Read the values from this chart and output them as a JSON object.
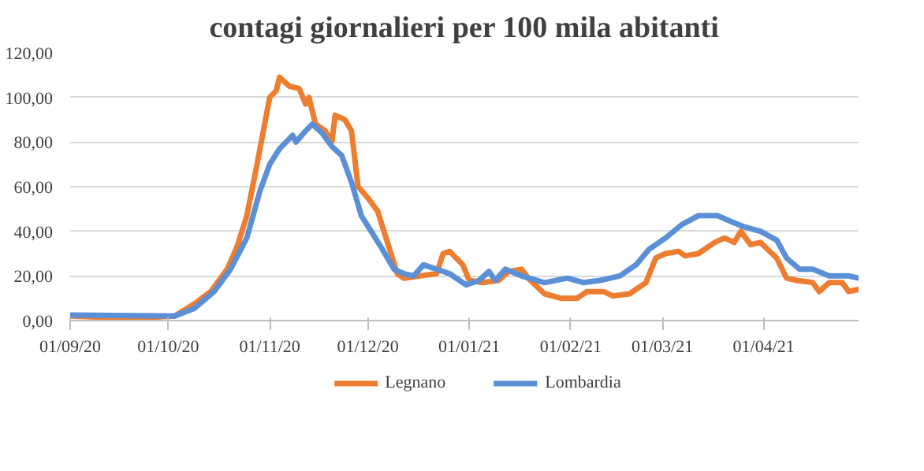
{
  "chart_data": {
    "type": "line",
    "title": "contagi giornalieri per 100 mila abitanti",
    "xlim": [
      "2020-09-01",
      "2021-04-30"
    ],
    "xticks": [
      {
        "value": "2020-09-01",
        "label": "01/09/20"
      },
      {
        "value": "2020-10-01",
        "label": "01/10/20"
      },
      {
        "value": "2020-11-01",
        "label": "01/11/20"
      },
      {
        "value": "2020-12-01",
        "label": "01/12/20"
      },
      {
        "value": "2021-01-01",
        "label": "01/01/21"
      },
      {
        "value": "2021-02-01",
        "label": "01/02/21"
      },
      {
        "value": "2021-03-01",
        "label": "01/03/21"
      },
      {
        "value": "2021-04-01",
        "label": "01/04/21"
      }
    ],
    "ylim": [
      0,
      120
    ],
    "yticks": [
      {
        "value": 0,
        "label": "0,00"
      },
      {
        "value": 20,
        "label": "20,00"
      },
      {
        "value": 40,
        "label": "40,00"
      },
      {
        "value": 60,
        "label": "60,00"
      },
      {
        "value": 80,
        "label": "80,00"
      },
      {
        "value": 100,
        "label": "100,00"
      },
      {
        "value": 120,
        "label": "120,00"
      }
    ],
    "grid": "y",
    "legend": "bottom",
    "line_style": "solid",
    "series": [
      {
        "name": "Legnano",
        "color": "#ed7d31",
        "x": [
          "2020-09-01",
          "2020-09-20",
          "2020-10-03",
          "2020-10-09",
          "2020-10-14",
          "2020-10-19",
          "2020-10-22",
          "2020-10-25",
          "2020-10-28",
          "2020-11-01",
          "2020-11-03",
          "2020-11-04",
          "2020-11-07",
          "2020-11-10",
          "2020-11-12",
          "2020-11-13",
          "2020-11-15",
          "2020-11-18",
          "2020-11-20",
          "2020-11-21",
          "2020-11-24",
          "2020-11-26",
          "2020-11-28",
          "2020-12-01",
          "2020-12-04",
          "2020-12-07",
          "2020-12-10",
          "2020-12-12",
          "2020-12-17",
          "2020-12-22",
          "2020-12-24",
          "2020-12-26",
          "2020-12-30",
          "2021-01-01",
          "2021-01-05",
          "2021-01-10",
          "2021-01-13",
          "2021-01-17",
          "2021-01-19",
          "2021-01-24",
          "2021-01-29",
          "2021-02-03",
          "2021-02-06",
          "2021-02-11",
          "2021-02-14",
          "2021-02-19",
          "2021-02-24",
          "2021-02-27",
          "2021-03-02",
          "2021-03-06",
          "2021-03-08",
          "2021-03-12",
          "2021-03-17",
          "2021-03-20",
          "2021-03-23",
          "2021-03-25",
          "2021-03-28",
          "2021-03-31",
          "2021-04-05",
          "2021-04-08",
          "2021-04-11",
          "2021-04-16",
          "2021-04-18",
          "2021-04-21",
          "2021-04-25",
          "2021-04-27",
          "2021-04-30"
        ],
        "values": [
          2,
          1,
          2,
          7.5,
          13,
          23,
          33,
          47,
          69,
          100,
          103,
          109,
          105,
          104,
          97,
          100,
          88,
          85,
          80,
          92,
          90,
          85,
          60,
          55,
          49,
          35,
          21,
          19,
          20,
          21,
          30,
          31,
          25,
          18,
          17,
          18,
          22,
          23,
          19,
          12,
          10,
          10,
          13,
          13,
          11,
          12,
          17,
          28,
          30,
          31,
          29,
          30,
          35,
          37,
          35,
          40,
          34,
          35,
          28,
          19,
          18,
          17,
          13,
          17,
          17,
          13,
          14
        ]
      },
      {
        "name": "Lombardia",
        "color": "#5b8fd6",
        "x": [
          "2020-09-01",
          "2020-10-03",
          "2020-10-09",
          "2020-10-15",
          "2020-10-20",
          "2020-10-25",
          "2020-10-29",
          "2020-11-01",
          "2020-11-04",
          "2020-11-08",
          "2020-11-09",
          "2020-11-12",
          "2020-11-14",
          "2020-11-17",
          "2020-11-20",
          "2020-11-23",
          "2020-11-26",
          "2020-11-29",
          "2020-12-02",
          "2020-12-05",
          "2020-12-09",
          "2020-12-12",
          "2020-12-15",
          "2020-12-18",
          "2020-12-22",
          "2020-12-26",
          "2020-12-31",
          "2021-01-04",
          "2021-01-07",
          "2021-01-09",
          "2021-01-12",
          "2021-01-17",
          "2021-01-24",
          "2021-01-31",
          "2021-02-05",
          "2021-02-10",
          "2021-02-16",
          "2021-02-21",
          "2021-02-25",
          "2021-03-02",
          "2021-03-07",
          "2021-03-12",
          "2021-03-18",
          "2021-03-21",
          "2021-03-26",
          "2021-03-31",
          "2021-04-05",
          "2021-04-08",
          "2021-04-12",
          "2021-04-16",
          "2021-04-21",
          "2021-04-27",
          "2021-04-30"
        ],
        "values": [
          2.5,
          2,
          5.5,
          13,
          23,
          37,
          58,
          70,
          77,
          83,
          80,
          85,
          88,
          84,
          78,
          74,
          62,
          47,
          40,
          33,
          23,
          21,
          20,
          25,
          23,
          21,
          16,
          18,
          22,
          18,
          23,
          20,
          17,
          19,
          17,
          18,
          20,
          25,
          32,
          37,
          43,
          47,
          47,
          45,
          42,
          40,
          36,
          28,
          23,
          23,
          20,
          20,
          19
        ]
      }
    ]
  }
}
